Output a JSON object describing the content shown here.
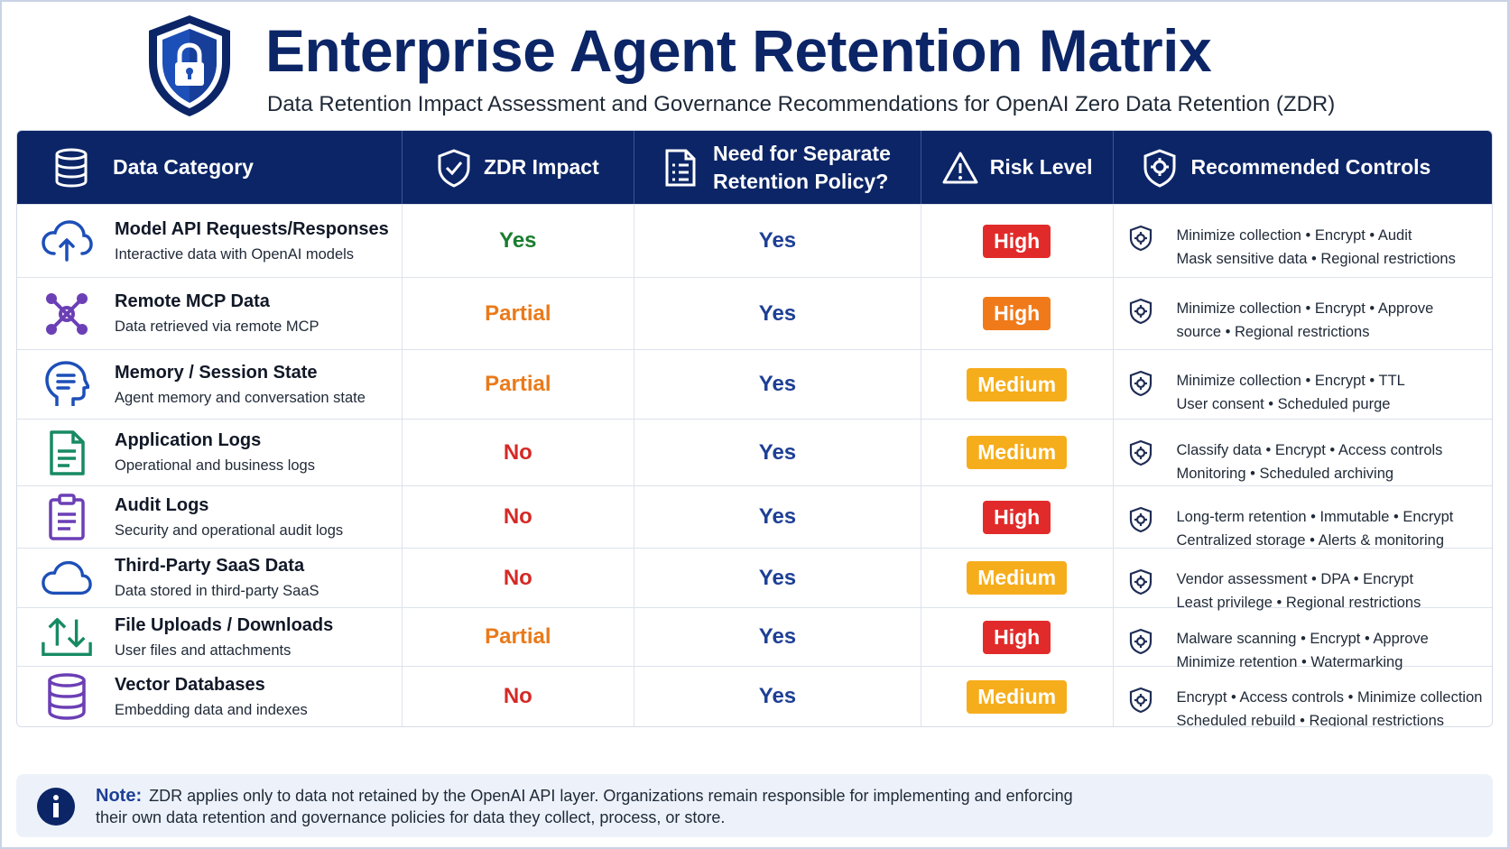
{
  "header": {
    "title": "Enterprise Agent Retention Matrix",
    "subtitle": "Data Retention Impact Assessment and Governance Recommendations for OpenAI Zero Data Retention (ZDR)",
    "logo_icon": "shield-lock-icon"
  },
  "colors": {
    "navy": "#0b2567",
    "yes_green": "#1a7d2e",
    "partial_orange": "#ea7a1a",
    "no_red": "#d42a26",
    "sep_blue": "#1d3f95",
    "high_red": "#e12b2a",
    "high_orange": "#f07a1a",
    "medium_amber": "#f6ad1c"
  },
  "columns": {
    "category": "Data Category",
    "zdr": "ZDR Impact",
    "separate_line1": "Need for Separate",
    "separate_line2": "Retention Policy?",
    "risk": "Risk Level",
    "controls": "Recommended Controls"
  },
  "rows": [
    {
      "icon": "cloud-upload-icon",
      "name": "Model API Requests/Responses",
      "desc": "Interactive data with OpenAI models",
      "zdr": "Yes",
      "separate": "Yes",
      "risk": "High",
      "controls_line1": "Minimize collection  •  Encrypt  •  Audit",
      "controls_line2": "Mask sensitive data  •  Regional restrictions"
    },
    {
      "icon": "network-nodes-icon",
      "name": "Remote MCP Data",
      "desc": "Data retrieved via remote MCP",
      "zdr": "Partial",
      "separate": "Yes",
      "risk": "High",
      "controls_line1": "Minimize collection  •  Encrypt  •  Approve",
      "controls_line2": "source  •  Regional restrictions"
    },
    {
      "icon": "head-memory-icon",
      "name": "Memory / Session State",
      "desc": "Agent memory and conversation state",
      "zdr": "Partial",
      "separate": "Yes",
      "risk": "Medium",
      "controls_line1": "Minimize collection  •  Encrypt  •  TTL",
      "controls_line2": "User consent  •  Scheduled purge"
    },
    {
      "icon": "document-icon",
      "name": "Application Logs",
      "desc": "Operational and business logs",
      "zdr": "No",
      "separate": "Yes",
      "risk": "Medium",
      "controls_line1": "Classify data  •  Encrypt  •  Access controls",
      "controls_line2": "Monitoring  •  Scheduled archiving"
    },
    {
      "icon": "clipboard-icon",
      "name": "Audit Logs",
      "desc": "Security and operational audit logs",
      "zdr": "No",
      "separate": "Yes",
      "risk": "High",
      "controls_line1": "Long-term retention  •  Immutable  •  Encrypt",
      "controls_line2": "Centralized storage  •  Alerts & monitoring"
    },
    {
      "icon": "cloud-icon",
      "name": "Third-Party SaaS Data",
      "desc": "Data stored in third-party SaaS",
      "zdr": "No",
      "separate": "Yes",
      "risk": "Medium",
      "controls_line1": "Vendor assessment  •  DPA  •  Encrypt",
      "controls_line2": "Least privilege  •  Regional restrictions"
    },
    {
      "icon": "upload-download-icon",
      "name": "File Uploads / Downloads",
      "desc": "User files and attachments",
      "zdr": "Partial",
      "separate": "Yes",
      "risk": "High",
      "controls_line1": "Malware scanning  •  Encrypt  •  Approve",
      "controls_line2": "Minimize retention  •  Watermarking"
    },
    {
      "icon": "database-icon",
      "name": "Vector Databases",
      "desc": "Embedding data and indexes",
      "zdr": "No",
      "separate": "Yes",
      "risk": "Medium",
      "controls_line1": "Encrypt  •  Access controls  •  Minimize collection",
      "controls_line2": "Scheduled rebuild  •  Regional restrictions"
    }
  ],
  "note": {
    "label": "Note:",
    "line1": "ZDR applies only to data not retained by the OpenAI API layer. Organizations remain responsible for implementing and enforcing",
    "line2": "their own data retention and governance policies for data they collect, process, or store."
  }
}
